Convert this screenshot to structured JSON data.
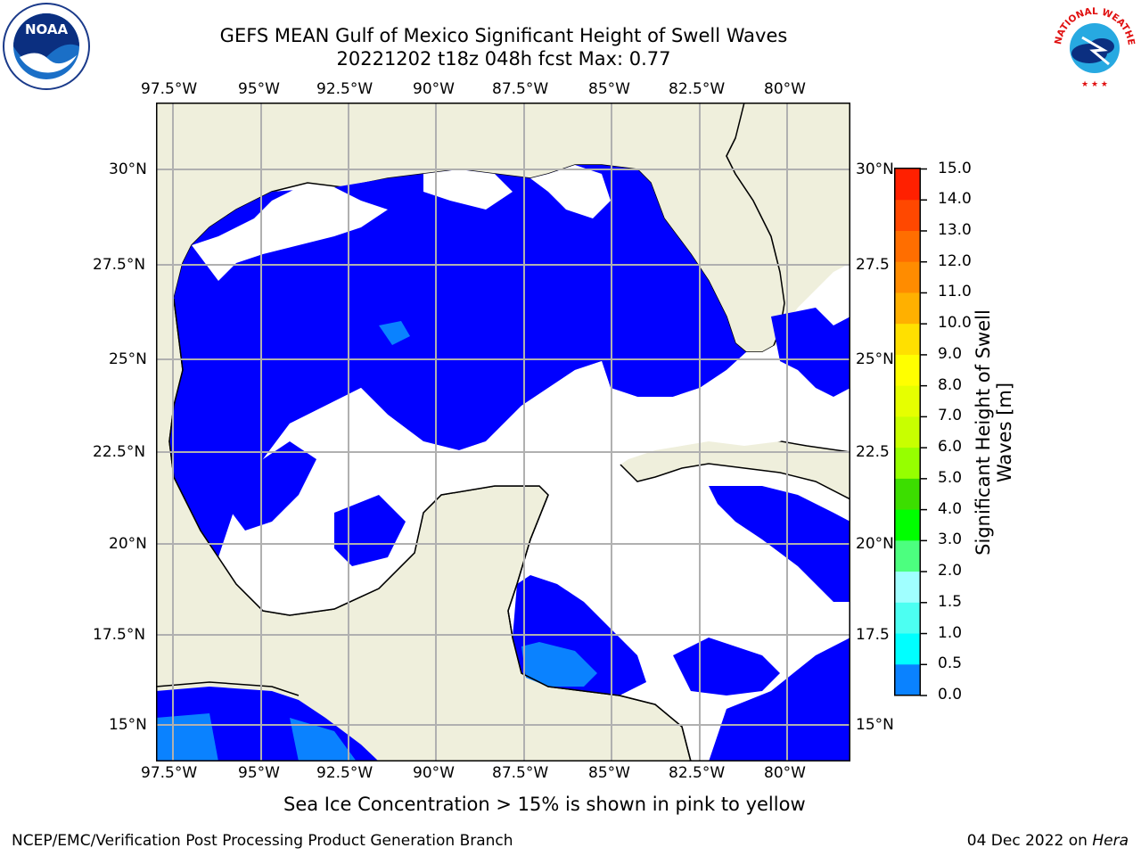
{
  "header": {
    "title_line1": "GEFS MEAN Gulf of Mexico Significant Height of Swell Waves",
    "title_line2": "20221202 t18z 048h fcst   Max: 0.77"
  },
  "logos": {
    "left": {
      "icon": "noaa-logo-icon",
      "text": "NOAA"
    },
    "right": {
      "icon": "nws-logo-icon",
      "text": "NATIONAL WEATHER SERVICE"
    }
  },
  "map": {
    "lon_labels": [
      "97.5°W",
      "95°W",
      "92.5°W",
      "90°W",
      "87.5°W",
      "85°W",
      "82.5°W",
      "80°W"
    ],
    "lat_labels_left": [
      "30°N",
      "27.5°N",
      "25°N",
      "22.5°N",
      "20°N",
      "17.5°N",
      "15°N"
    ],
    "lat_labels_right": [
      "30°N",
      "27.5",
      "25°N",
      "22.5",
      "20°N",
      "17.5",
      "15°N"
    ],
    "colors": {
      "land": "#efefdc",
      "ocean_low": "#0000ff",
      "ocean_mid": "#0a82ff",
      "no_data": "#ffffff",
      "grid": "#b0b0b0"
    }
  },
  "colorbar": {
    "label": "Significant Height of Swell Waves [m]",
    "ticks": [
      "15.0",
      "14.0",
      "13.0",
      "12.0",
      "11.0",
      "10.0",
      "9.0",
      "8.0",
      "7.0",
      "6.0",
      "5.0",
      "4.0",
      "3.0",
      "2.0",
      "1.5",
      "1.0",
      "0.5",
      "0.0"
    ],
    "colors": [
      "#ff0000",
      "#ff2000",
      "#ff4800",
      "#ff6e00",
      "#ff8c00",
      "#ffb000",
      "#ffe000",
      "#ffff00",
      "#e6ff00",
      "#c8ff00",
      "#96ff00",
      "#3cde00",
      "#00ff00",
      "#4cff7f",
      "#a0ffff",
      "#4cfff2",
      "#00ffff",
      "#0a82ff",
      "#0000ff"
    ]
  },
  "footer": {
    "subtitle": "Sea Ice Concentration > 15% is shown in pink to yellow",
    "credit_left": "NCEP/EMC/Verification Post Processing Product Generation Branch",
    "credit_date": "04 Dec 2022 on",
    "credit_machine": "Hera"
  }
}
